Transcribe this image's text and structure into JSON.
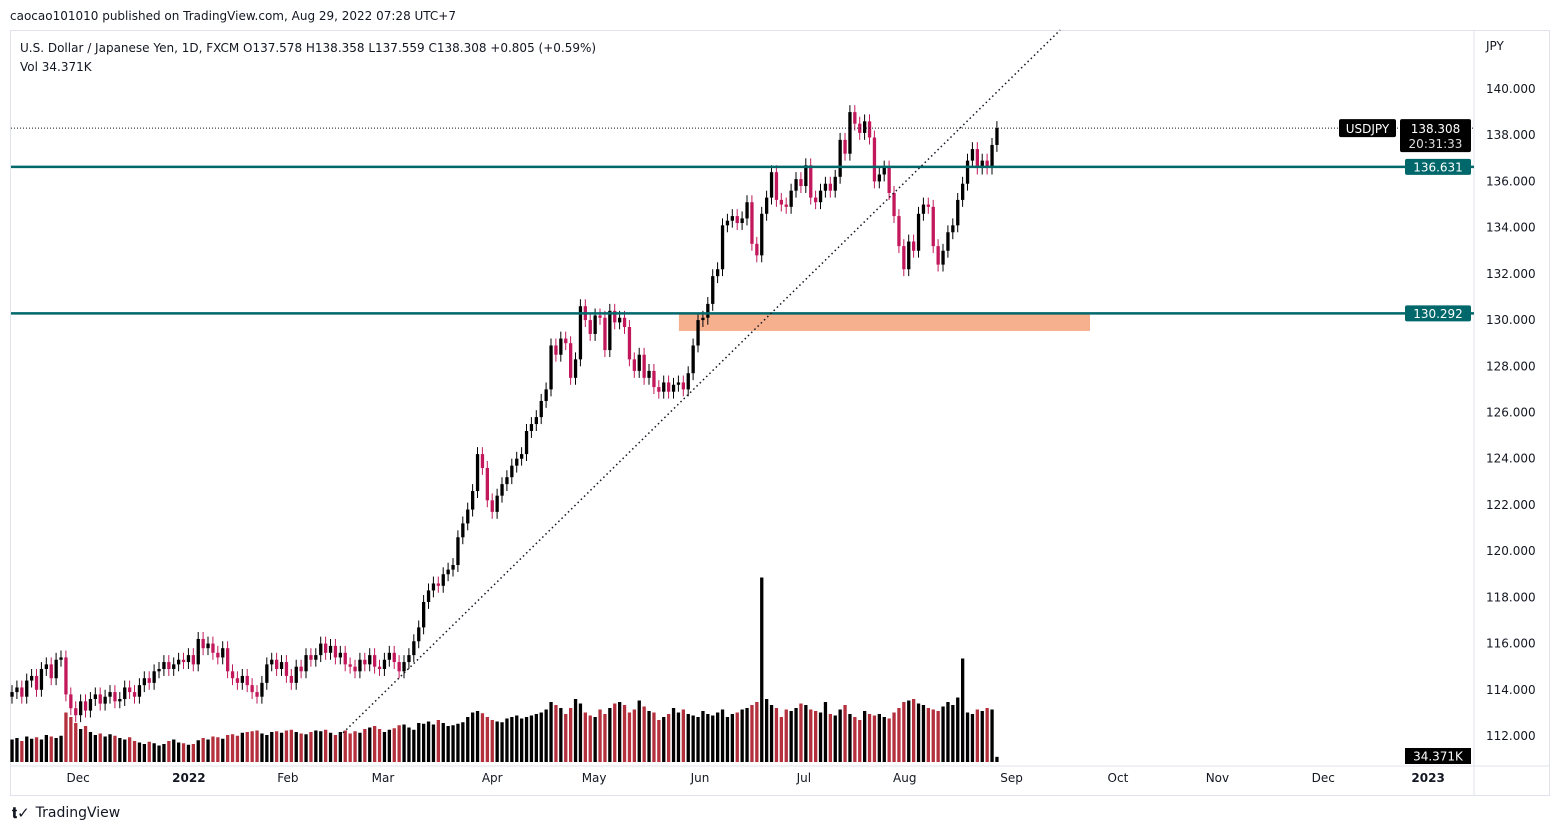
{
  "published": "caocao101010 published on TradingView.com, Aug 29, 2022 07:28 UTC+7",
  "legend": {
    "line1": "U.S. Dollar / Japanese Yen, 1D, FXCM  O137.578  H138.358  L137.559  C138.308  +0.805 (+0.59%)",
    "line2": "Vol  34.371K"
  },
  "footer": {
    "brand": "TradingView"
  },
  "colors": {
    "up": "#000000",
    "down": "#c2185b",
    "vol_up": "#000000",
    "vol_down": "#b5303d",
    "levels": "#00676b",
    "zone": "#f6b08e"
  },
  "chart_data": {
    "type": "candlestick",
    "symbol": "USDJPY",
    "currency": "JPY",
    "ylim": [
      111,
      142.5
    ],
    "y_ticks": [
      "112.000",
      "114.000",
      "116.000",
      "118.000",
      "120.000",
      "122.000",
      "124.000",
      "126.000",
      "128.000",
      "130.000",
      "132.000",
      "134.000",
      "136.000",
      "138.000",
      "140.000"
    ],
    "x_ticks": [
      {
        "label": "Dec",
        "bar": 13.5
      },
      {
        "label": "2022",
        "bar": 36.1
      },
      {
        "label": "Feb",
        "bar": 56.3
      },
      {
        "label": "Mar",
        "bar": 75.7
      },
      {
        "label": "Apr",
        "bar": 98
      },
      {
        "label": "May",
        "bar": 118.8
      },
      {
        "label": "Jun",
        "bar": 140.4
      },
      {
        "label": "Jul",
        "bar": 161.6
      },
      {
        "label": "Aug",
        "bar": 182.2
      },
      {
        "label": "Sep",
        "bar": 204
      },
      {
        "label": "Oct",
        "bar": 225.7
      },
      {
        "label": "Nov",
        "bar": 246
      },
      {
        "label": "Dec",
        "bar": 267.6
      },
      {
        "label": "2023",
        "bar": 289
      }
    ],
    "first_open": 113.7,
    "closes": [
      113.9,
      114.1,
      113.7,
      114.4,
      114.6,
      114.0,
      114.9,
      115.1,
      114.5,
      115.3,
      115.4,
      113.8,
      113.2,
      112.9,
      113.5,
      113.1,
      113.6,
      113.8,
      113.4,
      113.7,
      113.9,
      113.5,
      113.6,
      114.1,
      113.9,
      113.7,
      114.2,
      114.5,
      114.3,
      114.8,
      114.9,
      115.2,
      114.9,
      115.1,
      115.3,
      115.2,
      115.5,
      115.1,
      116.2,
      115.8,
      116.0,
      115.6,
      115.4,
      115.8,
      114.8,
      114.5,
      114.3,
      114.6,
      114.2,
      113.9,
      113.7,
      114.3,
      115.1,
      115.3,
      114.9,
      115.2,
      114.6,
      114.3,
      115.0,
      114.8,
      115.5,
      115.3,
      115.5,
      116.0,
      115.6,
      115.9,
      115.4,
      115.6,
      115.1,
      115.0,
      114.8,
      115.3,
      115.1,
      115.5,
      115.0,
      114.9,
      115.3,
      115.6,
      115.2,
      114.8,
      115.2,
      115.5,
      116.1,
      116.7,
      117.8,
      118.3,
      118.6,
      118.5,
      119.0,
      119.2,
      119.4,
      120.6,
      121.2,
      121.8,
      122.6,
      124.2,
      123.6,
      122.2,
      121.7,
      122.4,
      122.9,
      123.2,
      123.7,
      124.0,
      124.2,
      125.2,
      125.5,
      125.8,
      126.5,
      127.0,
      128.9,
      128.5,
      129.2,
      129.0,
      127.5,
      128.3,
      130.6,
      130.0,
      129.4,
      130.2,
      130.1,
      128.7,
      130.4,
      129.9,
      130.1,
      129.7,
      128.3,
      127.8,
      128.5,
      127.5,
      127.8,
      127.1,
      126.9,
      127.3,
      126.9,
      127.2,
      127.3,
      127.0,
      127.7,
      128.9,
      130.0,
      130.1,
      130.7,
      131.9,
      132.2,
      134.1,
      134.3,
      134.5,
      134.2,
      134.4,
      135.1,
      133.3,
      132.8,
      134.6,
      135.3,
      136.4,
      135.2,
      135.0,
      134.9,
      135.6,
      136.1,
      135.8,
      136.7,
      135.3,
      135.1,
      135.6,
      135.9,
      135.6,
      136.2,
      137.8,
      137.2,
      139.0,
      138.5,
      138.1,
      138.6,
      137.9,
      136.0,
      136.3,
      136.6,
      135.5,
      134.5,
      133.2,
      132.2,
      133.4,
      133.0,
      134.6,
      135.0,
      134.9,
      133.2,
      132.4,
      133.0,
      133.8,
      134.1,
      135.2,
      135.9,
      136.9,
      137.4,
      136.6,
      136.9,
      136.6,
      137.578,
      138.308
    ],
    "volumes_k": [
      150,
      160,
      140,
      170,
      155,
      165,
      150,
      180,
      170,
      160,
      175,
      330,
      300,
      260,
      220,
      240,
      200,
      180,
      190,
      170,
      185,
      175,
      160,
      150,
      165,
      140,
      130,
      120,
      135,
      125,
      110,
      120,
      140,
      150,
      130,
      125,
      115,
      120,
      145,
      160,
      150,
      170,
      165,
      155,
      180,
      185,
      175,
      195,
      200,
      205,
      210,
      190,
      180,
      200,
      205,
      195,
      210,
      215,
      200,
      190,
      185,
      200,
      210,
      205,
      215,
      195,
      180,
      200,
      210,
      190,
      205,
      195,
      220,
      230,
      240,
      220,
      200,
      215,
      225,
      245,
      250,
      230,
      215,
      260,
      255,
      270,
      250,
      280,
      260,
      240,
      245,
      255,
      265,
      300,
      330,
      340,
      325,
      300,
      280,
      270,
      265,
      290,
      300,
      310,
      290,
      300,
      310,
      320,
      330,
      350,
      400,
      380,
      360,
      320,
      360,
      420,
      390,
      330,
      310,
      300,
      350,
      320,
      360,
      390,
      400,
      380,
      330,
      350,
      410,
      370,
      340,
      330,
      280,
      300,
      320,
      360,
      330,
      350,
      320,
      310,
      300,
      340,
      320,
      310,
      330,
      350,
      300,
      320,
      330,
      350,
      360,
      380,
      400,
      1230,
      420,
      380,
      360,
      300,
      350,
      340,
      360,
      390,
      380,
      350,
      340,
      330,
      400,
      320,
      310,
      350,
      380,
      320,
      300,
      280,
      340,
      320,
      310,
      320,
      300,
      290,
      330,
      360,
      400,
      410,
      420,
      390,
      380,
      360,
      350,
      340,
      370,
      400,
      380,
      430,
      690,
      330,
      320,
      350,
      340,
      360,
      350,
      34.371
    ],
    "horizontal_levels": [
      136.631,
      130.292
    ],
    "last_price": {
      "value": "138.308",
      "countdown": "20:31:33",
      "raw": 138.308
    },
    "level_labels": [
      "136.631",
      "130.292"
    ],
    "volume_label": "34.371K",
    "trendline": {
      "style": "dotted",
      "from": {
        "bar": 66.9,
        "price": 112.0
      },
      "to": {
        "bar": 213.9,
        "price": 142.55
      }
    },
    "zone": {
      "from_bar": 136.1,
      "to_bar": 220,
      "top": 130.26,
      "bottom": 129.53
    }
  }
}
